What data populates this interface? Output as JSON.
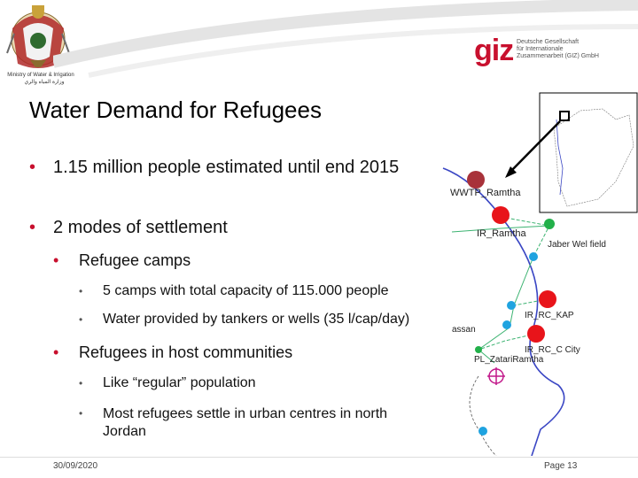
{
  "header": {
    "ministry_en": "Ministry of Water & Irrigation",
    "ministry_ar": "وزارة المياه والري",
    "giz_logo": "giz",
    "giz_text": [
      "Deutsche Gesellschaft",
      "für Internationale",
      "Zusammenarbeit (GIZ) GmbH"
    ]
  },
  "slide": {
    "title": "Water Demand for Refugees",
    "bullets": {
      "b1": "1.15 million people estimated until end 2015",
      "b2": "2 modes of settlement",
      "b2_1": "Refugee camps",
      "b2_1_1": "5 camps with total capacity of 115.000 people",
      "b2_1_2": "Water provided by tankers or wells (35 l/cap/day)",
      "b3": "Refugees in host communities",
      "b3_1": "Like “regular” population",
      "b3_2": "Most refugees settle in urban centres in north Jordan"
    }
  },
  "map": {
    "labels": {
      "wwtp": "WWTP_Ramtha",
      "ir_ramtha": "IR_Ramtha",
      "jaber": "Jaber Wel field",
      "ir_rc_kap": "IR_RC_KAP",
      "hassan": "assan",
      "ir_rc_city": "IR_RC_C City",
      "pl_zatari": "PL_ZatariRamtha"
    },
    "colors": {
      "red_node": "#e8141a",
      "dark_node": "#a8323a",
      "green_node": "#22b04a",
      "blue_node": "#1fa3e0",
      "river": "#3b47c4",
      "link_green": "#3cb371",
      "crosshair": "#c2188a"
    }
  },
  "footer": {
    "date": "30/09/2020",
    "page": "Page 13"
  }
}
